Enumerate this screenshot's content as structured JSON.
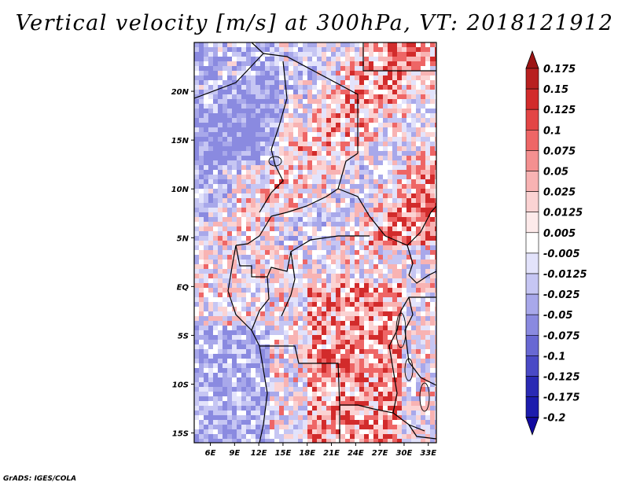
{
  "title": "Vertical velocity [m/s] at 300hPa, VT: 2018121912",
  "credit": "GrADS: IGES/COLA",
  "map": {
    "lon_ticks": [
      "6E",
      "9E",
      "12E",
      "15E",
      "18E",
      "21E",
      "24E",
      "27E",
      "30E",
      "33E"
    ],
    "lat_ticks": [
      "20N",
      "15N",
      "10N",
      "5N",
      "EQ",
      "5S",
      "10S",
      "15S"
    ],
    "lon_range": [
      4,
      34
    ],
    "lat_range": [
      -16,
      25
    ]
  },
  "colorbar": {
    "labels": [
      "0.175",
      "0.15",
      "0.125",
      "0.1",
      "0.075",
      "0.05",
      "0.025",
      "0.0125",
      "0.005",
      "-0.005",
      "-0.0125",
      "-0.025",
      "-0.05",
      "-0.075",
      "-0.1",
      "-0.125",
      "-0.175",
      "-0.2"
    ],
    "colors": [
      "#9c1414",
      "#b82020",
      "#d22b2b",
      "#e34545",
      "#ee6666",
      "#f49090",
      "#f8b3b3",
      "#fbd3d3",
      "#fdeaea",
      "#ffffff",
      "#e3e3fb",
      "#c6c6f3",
      "#a8a8ea",
      "#8a8ae0",
      "#6868d3",
      "#4a4ac6",
      "#2a2ab4",
      "#1c1cad",
      "#120aa0"
    ]
  }
}
